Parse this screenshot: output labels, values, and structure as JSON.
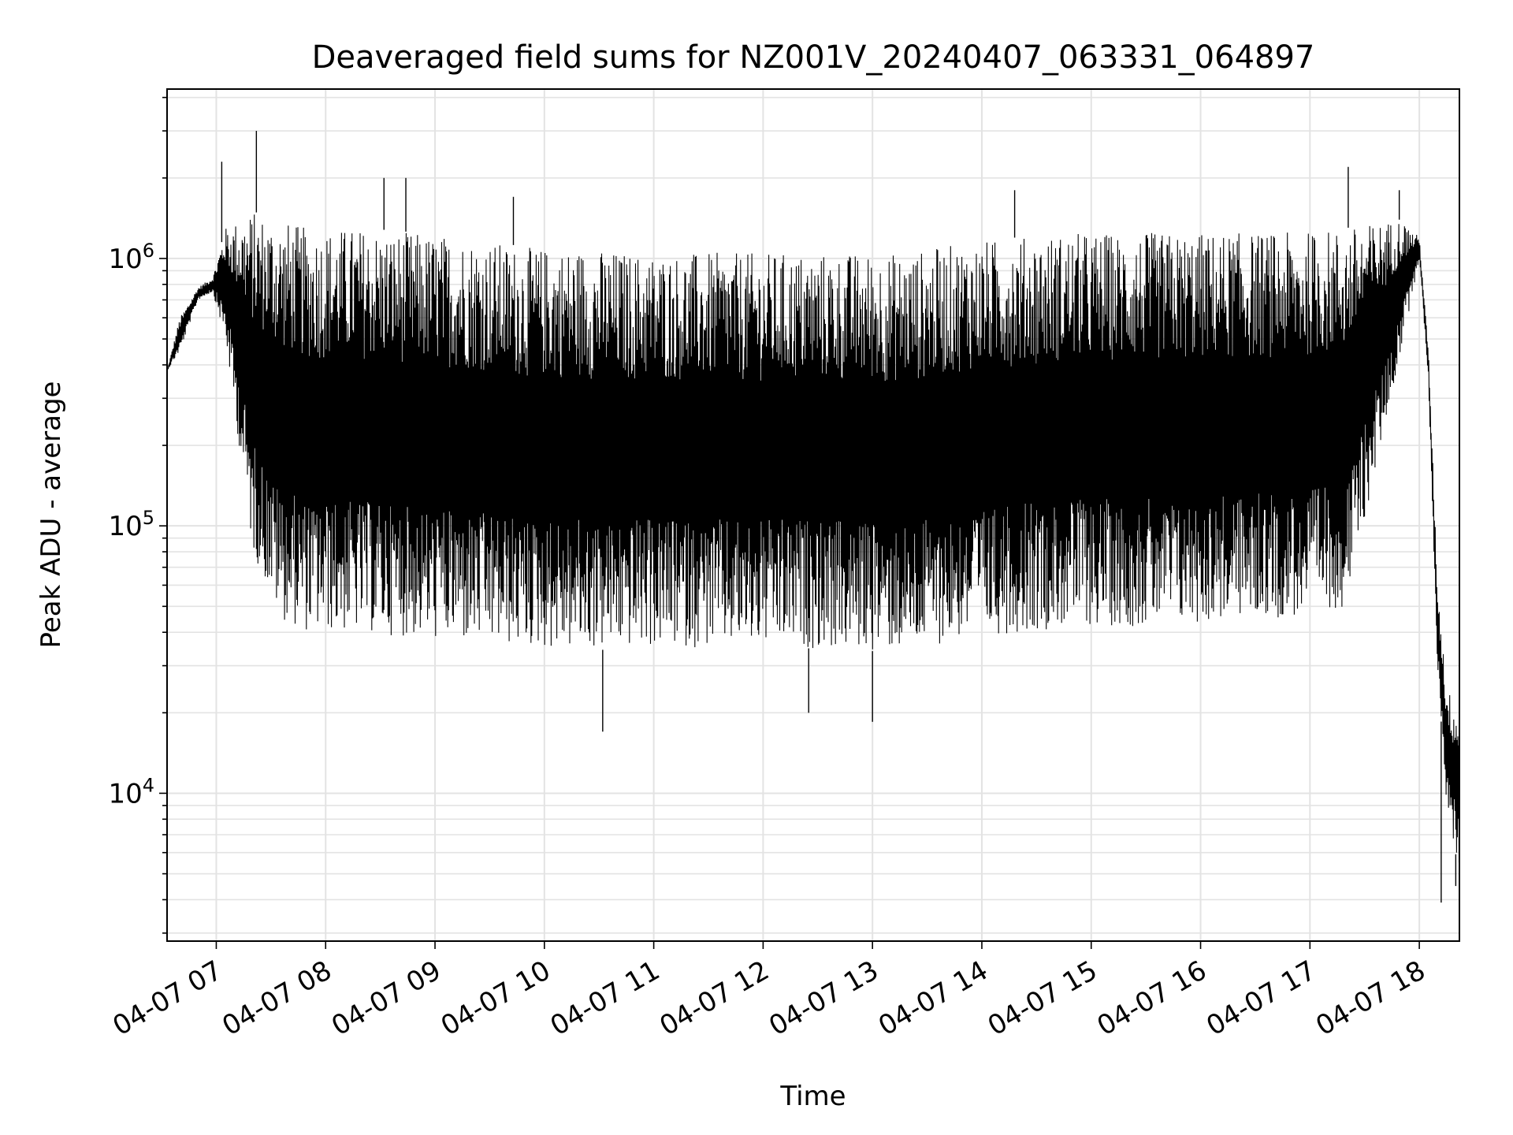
{
  "chart_data": {
    "type": "line",
    "title": "Deaveraged field sums for NZ001V_20240407_063331_064897",
    "xlabel": "Time",
    "ylabel": "Peak ADU - average",
    "y_scale": "log",
    "grid": true,
    "line_color": "#000000",
    "x_range": [
      "2024-04-07 06:33",
      "2024-04-07 18:22"
    ],
    "ylim": [
      2800,
      4300000
    ],
    "x_tick_labels": [
      "04-07 07",
      "04-07 08",
      "04-07 09",
      "04-07 10",
      "04-07 11",
      "04-07 12",
      "04-07 13",
      "04-07 14",
      "04-07 15",
      "04-07 16",
      "04-07 17",
      "04-07 18"
    ],
    "y_tick_labels": [
      {
        "base": "10",
        "exp": "4",
        "value": 10000
      },
      {
        "base": "10",
        "exp": "5",
        "value": 100000
      },
      {
        "base": "10",
        "exp": "6",
        "value": 1000000
      }
    ],
    "series": [
      {
        "x": [
          "2024-04-07 06:33",
          "2024-04-07 06:40",
          "2024-04-07 06:50",
          "2024-04-07 06:58",
          "2024-04-07 07:05",
          "2024-04-07 07:20",
          "2024-04-07 07:35",
          "2024-04-07 07:50",
          "2024-04-07 08:20",
          "2024-04-07 08:50",
          "2024-04-07 09:20",
          "2024-04-07 09:50",
          "2024-04-07 10:20",
          "2024-04-07 10:50",
          "2024-04-07 11:20",
          "2024-04-07 11:50",
          "2024-04-07 12:20",
          "2024-04-07 12:50",
          "2024-04-07 13:20",
          "2024-04-07 13:50",
          "2024-04-07 14:20",
          "2024-04-07 14:50",
          "2024-04-07 15:20",
          "2024-04-07 15:50",
          "2024-04-07 16:20",
          "2024-04-07 16:50",
          "2024-04-07 17:20",
          "2024-04-07 17:35",
          "2024-04-07 17:50",
          "2024-04-07 18:00",
          "2024-04-07 18:05",
          "2024-04-07 18:10",
          "2024-04-07 18:15",
          "2024-04-07 18:22"
        ],
        "upper": [
          380000,
          600000,
          780000,
          850000,
          1300000,
          1500000,
          1400000,
          1300000,
          1300000,
          1250000,
          1200000,
          1100000,
          1100000,
          1050000,
          1050000,
          1050000,
          1050000,
          1050000,
          1050000,
          1150000,
          1200000,
          1250000,
          1250000,
          1250000,
          1250000,
          1250000,
          1300000,
          1350000,
          1400000,
          1200000,
          450000,
          60000,
          25000,
          20000
        ],
        "lower": [
          380000,
          450000,
          700000,
          750000,
          500000,
          80000,
          45000,
          40000,
          40000,
          38000,
          36000,
          35000,
          34000,
          35000,
          35000,
          35000,
          35000,
          34000,
          34000,
          38000,
          40000,
          42000,
          42000,
          42000,
          45000,
          45000,
          50000,
          150000,
          450000,
          1000000,
          350000,
          30000,
          9000,
          5000
        ],
        "peaks": [
          {
            "x": "2024-04-07 07:03",
            "y": 2300000
          },
          {
            "x": "2024-04-07 07:22",
            "y": 3000000
          },
          {
            "x": "2024-04-07 08:32",
            "y": 2000000
          },
          {
            "x": "2024-04-07 08:44",
            "y": 2000000
          },
          {
            "x": "2024-04-07 09:43",
            "y": 1700000
          },
          {
            "x": "2024-04-07 14:18",
            "y": 1800000
          },
          {
            "x": "2024-04-07 17:21",
            "y": 2200000
          },
          {
            "x": "2024-04-07 17:49",
            "y": 1800000
          }
        ],
        "troughs": [
          {
            "x": "2024-04-07 10:32",
            "y": 17000
          },
          {
            "x": "2024-04-07 13:00",
            "y": 18500
          },
          {
            "x": "2024-04-07 12:25",
            "y": 20000
          },
          {
            "x": "2024-04-07 18:12",
            "y": 3900
          },
          {
            "x": "2024-04-07 18:20",
            "y": 4500
          }
        ]
      }
    ]
  }
}
